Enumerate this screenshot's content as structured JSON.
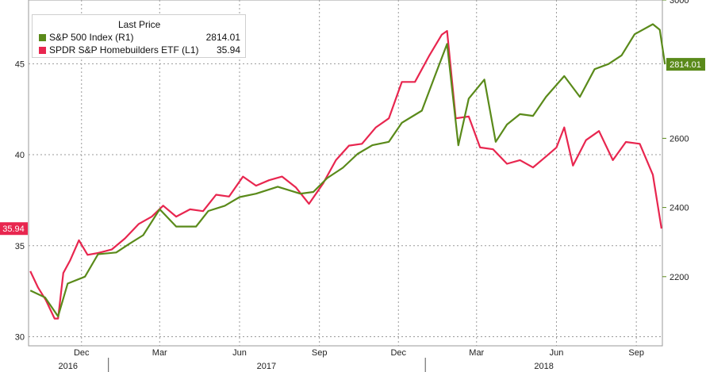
{
  "chart_data": {
    "type": "line",
    "legend": {
      "title": "Last Price",
      "placement": "top-left",
      "entries": [
        {
          "name": "S&P 500 Index  (R1)",
          "value": "2814.01",
          "color": "#5a8a1a"
        },
        {
          "name": "SPDR S&P Homebuilders ETF  (L1)",
          "value": "35.94",
          "color": "#e8264f"
        }
      ]
    },
    "x_axis": {
      "domain": [
        "2016-10-01",
        "2018-10-01"
      ],
      "month_ticks": [
        {
          "date": "2016-12-01",
          "label": "Dec"
        },
        {
          "date": "2017-03-01",
          "label": "Mar"
        },
        {
          "date": "2017-06-01",
          "label": "Jun"
        },
        {
          "date": "2017-09-01",
          "label": "Sep"
        },
        {
          "date": "2017-12-01",
          "label": "Dec"
        },
        {
          "date": "2018-03-01",
          "label": "Mar"
        },
        {
          "date": "2018-06-01",
          "label": "Jun"
        },
        {
          "date": "2018-09-01",
          "label": "Sep"
        }
      ],
      "year_labels": [
        {
          "label": "2016",
          "start": "2016-10-01",
          "end": "2016-12-31"
        },
        {
          "label": "2017",
          "start": "2017-01-01",
          "end": "2017-12-31"
        },
        {
          "label": "2018",
          "start": "2018-01-01",
          "end": "2018-10-01"
        }
      ]
    },
    "left_axis": {
      "ylim": [
        29.5,
        48.5
      ],
      "ticks": [
        30,
        35,
        40,
        45
      ],
      "last_value_label": "35.94"
    },
    "right_axis": {
      "ylim": [
        2000,
        3000
      ],
      "ticks": [
        2200,
        2400,
        2600,
        3000
      ],
      "last_value_label": "2814.01"
    },
    "grid": true,
    "series": [
      {
        "name": "SPDR S&P Homebuilders ETF",
        "axis": "left",
        "color": "#e8264f",
        "points": [
          [
            "2016-10-03",
            33.6
          ],
          [
            "2016-10-12",
            32.7
          ],
          [
            "2016-10-21",
            32.0
          ],
          [
            "2016-10-31",
            31.0
          ],
          [
            "2016-11-04",
            31.0
          ],
          [
            "2016-11-10",
            33.5
          ],
          [
            "2016-11-18",
            34.2
          ],
          [
            "2016-11-28",
            35.3
          ],
          [
            "2016-12-08",
            34.5
          ],
          [
            "2016-12-20",
            34.6
          ],
          [
            "2017-01-05",
            34.8
          ],
          [
            "2017-01-20",
            35.4
          ],
          [
            "2017-02-05",
            36.2
          ],
          [
            "2017-02-20",
            36.6
          ],
          [
            "2017-03-05",
            37.2
          ],
          [
            "2017-03-20",
            36.6
          ],
          [
            "2017-04-05",
            37.0
          ],
          [
            "2017-04-20",
            36.9
          ],
          [
            "2017-05-05",
            37.8
          ],
          [
            "2017-05-20",
            37.7
          ],
          [
            "2017-06-05",
            38.8
          ],
          [
            "2017-06-20",
            38.3
          ],
          [
            "2017-07-05",
            38.6
          ],
          [
            "2017-07-20",
            38.8
          ],
          [
            "2017-08-05",
            38.2
          ],
          [
            "2017-08-20",
            37.3
          ],
          [
            "2017-09-05",
            38.4
          ],
          [
            "2017-09-20",
            39.7
          ],
          [
            "2017-10-05",
            40.5
          ],
          [
            "2017-10-20",
            40.6
          ],
          [
            "2017-11-05",
            41.5
          ],
          [
            "2017-11-20",
            42.0
          ],
          [
            "2017-12-05",
            44.0
          ],
          [
            "2017-12-20",
            44.0
          ],
          [
            "2018-01-05",
            45.4
          ],
          [
            "2018-01-20",
            46.6
          ],
          [
            "2018-01-26",
            46.8
          ],
          [
            "2018-02-05",
            42.0
          ],
          [
            "2018-02-20",
            42.1
          ],
          [
            "2018-03-05",
            40.4
          ],
          [
            "2018-03-20",
            40.3
          ],
          [
            "2018-04-05",
            39.5
          ],
          [
            "2018-04-20",
            39.7
          ],
          [
            "2018-05-05",
            39.3
          ],
          [
            "2018-05-20",
            39.9
          ],
          [
            "2018-06-01",
            40.4
          ],
          [
            "2018-06-10",
            41.5
          ],
          [
            "2018-06-20",
            39.4
          ],
          [
            "2018-07-05",
            40.8
          ],
          [
            "2018-07-20",
            41.3
          ],
          [
            "2018-08-05",
            39.7
          ],
          [
            "2018-08-20",
            40.7
          ],
          [
            "2018-09-05",
            40.6
          ],
          [
            "2018-09-20",
            38.9
          ],
          [
            "2018-09-30",
            35.94
          ]
        ]
      },
      {
        "name": "S&P 500 Index",
        "axis": "right",
        "color": "#5a8a1a",
        "points": [
          [
            "2016-10-03",
            2160
          ],
          [
            "2016-10-20",
            2140
          ],
          [
            "2016-11-04",
            2085
          ],
          [
            "2016-11-15",
            2180
          ],
          [
            "2016-12-05",
            2200
          ],
          [
            "2016-12-20",
            2265
          ],
          [
            "2017-01-10",
            2270
          ],
          [
            "2017-01-25",
            2295
          ],
          [
            "2017-02-10",
            2320
          ],
          [
            "2017-03-01",
            2395
          ],
          [
            "2017-03-20",
            2345
          ],
          [
            "2017-04-12",
            2345
          ],
          [
            "2017-04-26",
            2390
          ],
          [
            "2017-05-15",
            2405
          ],
          [
            "2017-06-01",
            2430
          ],
          [
            "2017-06-20",
            2440
          ],
          [
            "2017-07-15",
            2460
          ],
          [
            "2017-08-10",
            2440
          ],
          [
            "2017-08-25",
            2445
          ],
          [
            "2017-09-10",
            2485
          ],
          [
            "2017-09-28",
            2515
          ],
          [
            "2017-10-15",
            2555
          ],
          [
            "2017-11-01",
            2580
          ],
          [
            "2017-11-20",
            2590
          ],
          [
            "2017-12-05",
            2645
          ],
          [
            "2017-12-28",
            2680
          ],
          [
            "2018-01-12",
            2780
          ],
          [
            "2018-01-26",
            2873
          ],
          [
            "2018-02-08",
            2580
          ],
          [
            "2018-02-20",
            2715
          ],
          [
            "2018-03-10",
            2770
          ],
          [
            "2018-03-23",
            2590
          ],
          [
            "2018-04-05",
            2640
          ],
          [
            "2018-04-20",
            2670
          ],
          [
            "2018-05-05",
            2665
          ],
          [
            "2018-05-20",
            2720
          ],
          [
            "2018-06-10",
            2780
          ],
          [
            "2018-06-28",
            2720
          ],
          [
            "2018-07-15",
            2800
          ],
          [
            "2018-07-31",
            2815
          ],
          [
            "2018-08-15",
            2840
          ],
          [
            "2018-08-30",
            2901
          ],
          [
            "2018-09-20",
            2930
          ],
          [
            "2018-09-28",
            2914
          ],
          [
            "2018-10-04",
            2814.01
          ]
        ]
      }
    ]
  }
}
